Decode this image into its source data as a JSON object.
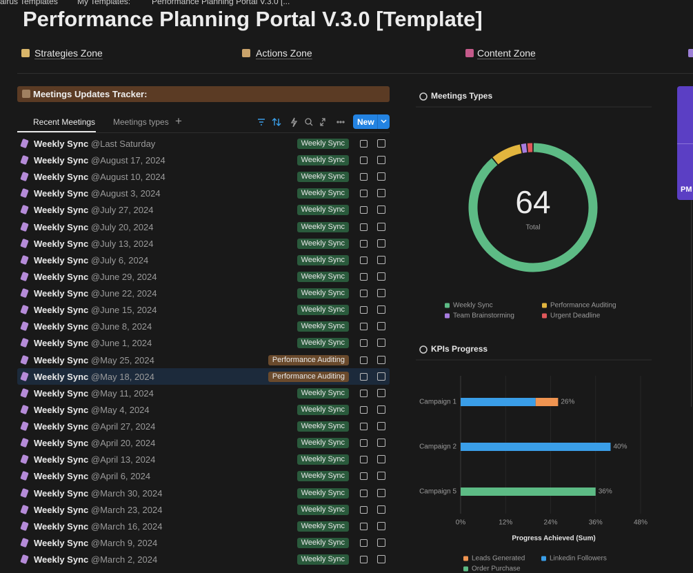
{
  "breadcrumb": [
    "airus Templates",
    "My Templates:",
    "Performance Planning Portal V.3.0 [..."
  ],
  "title": "Performance Planning Portal  V.3.0 [Template]",
  "nav": [
    "Strategies Zone",
    "Actions Zone",
    "Content Zone"
  ],
  "tracker": {
    "title": "Meetings Updates Tracker:",
    "tabs": [
      "Recent Meetings",
      "Meetings types"
    ],
    "new_button": "New",
    "rows": [
      {
        "name": "Weekly Sync",
        "date": "@Last Saturday",
        "tag": "Weekly Sync"
      },
      {
        "name": "Weekly Sync",
        "date": "@August 17, 2024",
        "tag": "Weekly Sync"
      },
      {
        "name": "Weekly Sync",
        "date": "@August 10, 2024",
        "tag": "Weekly Sync"
      },
      {
        "name": "Weekly Sync",
        "date": "@August 3, 2024",
        "tag": "Weekly Sync"
      },
      {
        "name": "Weekly Sync",
        "date": "@July 27, 2024",
        "tag": "Weekly Sync"
      },
      {
        "name": "Weekly Sync",
        "date": "@July 20, 2024",
        "tag": "Weekly Sync"
      },
      {
        "name": "Weekly Sync",
        "date": "@July 13, 2024",
        "tag": "Weekly Sync"
      },
      {
        "name": "Weekly Sync",
        "date": "@July 6, 2024",
        "tag": "Weekly Sync"
      },
      {
        "name": "Weekly Sync",
        "date": "@June 29, 2024",
        "tag": "Weekly Sync"
      },
      {
        "name": "Weekly Sync",
        "date": "@June 22, 2024",
        "tag": "Weekly Sync"
      },
      {
        "name": "Weekly Sync",
        "date": "@June 15, 2024",
        "tag": "Weekly Sync"
      },
      {
        "name": "Weekly Sync",
        "date": "@June 8, 2024",
        "tag": "Weekly Sync"
      },
      {
        "name": "Weekly Sync",
        "date": "@June 1, 2024",
        "tag": "Weekly Sync"
      },
      {
        "name": "Weekly Sync",
        "date": "@May 25, 2024",
        "tag": "Performance Auditing"
      },
      {
        "name": "Weekly Sync",
        "date": "@May 18, 2024",
        "tag": "Performance Auditing"
      },
      {
        "name": "Weekly Sync",
        "date": "@May 11, 2024",
        "tag": "Weekly Sync"
      },
      {
        "name": "Weekly Sync",
        "date": "@May 4, 2024",
        "tag": "Weekly Sync"
      },
      {
        "name": "Weekly Sync",
        "date": "@April 27, 2024",
        "tag": "Weekly Sync"
      },
      {
        "name": "Weekly Sync",
        "date": "@April 20, 2024",
        "tag": "Weekly Sync"
      },
      {
        "name": "Weekly Sync",
        "date": "@April 13, 2024",
        "tag": "Weekly Sync"
      },
      {
        "name": "Weekly Sync",
        "date": "@April 6, 2024",
        "tag": "Weekly Sync"
      },
      {
        "name": "Weekly Sync",
        "date": "@March 30, 2024",
        "tag": "Weekly Sync"
      },
      {
        "name": "Weekly Sync",
        "date": "@March 23, 2024",
        "tag": "Weekly Sync"
      },
      {
        "name": "Weekly Sync",
        "date": "@March 16, 2024",
        "tag": "Weekly Sync"
      },
      {
        "name": "Weekly Sync",
        "date": "@March 9, 2024",
        "tag": "Weekly Sync"
      },
      {
        "name": "Weekly Sync",
        "date": "@March 2, 2024",
        "tag": "Weekly Sync"
      }
    ]
  },
  "side_badge": "PM",
  "chart_data": [
    {
      "type": "donut",
      "title": "Meetings Types",
      "total": 64,
      "total_label": "Total",
      "categories": [
        "Weekly Sync",
        "Performance Auditing",
        "Team Brainstorming",
        "Urgent Deadline"
      ],
      "values": [
        57,
        5,
        1,
        1
      ],
      "colors": [
        "#5dbb85",
        "#e2b53e",
        "#a77ce0",
        "#e0575a"
      ]
    },
    {
      "type": "bar",
      "title": "KPIs Progress",
      "orientation": "horizontal",
      "stacked": true,
      "categories": [
        "Campaign 1",
        "Campaign 2",
        "Campaign 5"
      ],
      "series": [
        {
          "name": "Leads Generated",
          "color": "#ef9451",
          "values": [
            6,
            null,
            null
          ]
        },
        {
          "name": "Linkedin Followers",
          "color": "#3a9ee8",
          "values": [
            20,
            40,
            null
          ]
        },
        {
          "name": "Order Purchase",
          "color": "#5dbb85",
          "values": [
            null,
            null,
            36
          ]
        }
      ],
      "totals": [
        26,
        40,
        36
      ],
      "total_labels": [
        "26%",
        "40%",
        "36%"
      ],
      "xlim": [
        0,
        48
      ],
      "xticks": [
        {
          "value": 0,
          "label": "0%"
        },
        {
          "value": 12,
          "label": "12%"
        },
        {
          "value": 24,
          "label": "24%"
        },
        {
          "value": 36,
          "label": "36%"
        },
        {
          "value": 48,
          "label": "48%"
        }
      ],
      "xlabel": "Progress Achieved (Sum)",
      "grid": true
    }
  ]
}
